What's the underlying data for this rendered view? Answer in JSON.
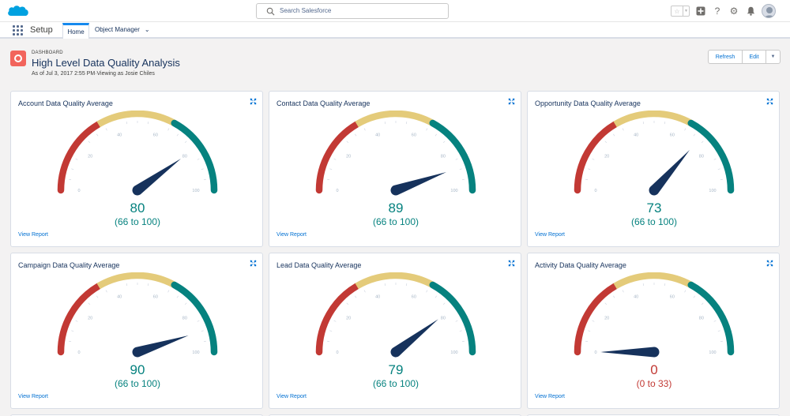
{
  "header": {
    "search_placeholder": "Search Salesforce",
    "favorites_star": "☆",
    "favorites_caret": "▼",
    "add_icon": "add-icon",
    "help_glyph": "?",
    "setup_glyph": "⚙",
    "bell_glyph": "🔔"
  },
  "nav": {
    "app_name": "Setup",
    "tabs": [
      {
        "label": "Home",
        "active": true
      },
      {
        "label": "Object Manager",
        "chevron": "⌄"
      }
    ]
  },
  "dashboard": {
    "eyebrow": "DASHBOARD",
    "title": "High Level Data Quality Analysis",
    "subtitle": "As of Jul 3, 2017 2:55 PM·Viewing as Josie Chiles",
    "buttons": {
      "refresh": "Refresh",
      "edit": "Edit"
    }
  },
  "colors": {
    "red": "#c23934",
    "yellow": "#e4cb7a",
    "teal": "#06827f",
    "needle": "#16325c",
    "link": "#0070d2"
  },
  "gauge_scale": {
    "min": 0,
    "max": 100,
    "ticks": [
      "0",
      "20",
      "40",
      "60",
      "80",
      "100"
    ],
    "bands": [
      0,
      33,
      66,
      100
    ]
  },
  "chart_data": [
    {
      "type": "gauge",
      "title": "Account Data Quality Average",
      "value": 80,
      "value_text": "80",
      "range_text": "(66 to 100)",
      "band": "teal",
      "link": "View Report"
    },
    {
      "type": "gauge",
      "title": "Contact Data Quality Average",
      "value": 89,
      "value_text": "89",
      "range_text": "(66 to 100)",
      "band": "teal",
      "link": "View Report"
    },
    {
      "type": "gauge",
      "title": "Opportunity Data Quality Average",
      "value": 73,
      "value_text": "73",
      "range_text": "(66 to 100)",
      "band": "teal",
      "link": "View Report"
    },
    {
      "type": "gauge",
      "title": "Campaign Data Quality Average",
      "value": 90,
      "value_text": "90",
      "range_text": "(66 to 100)",
      "band": "teal",
      "link": "View Report"
    },
    {
      "type": "gauge",
      "title": "Lead Data Quality Average",
      "value": 79,
      "value_text": "79",
      "range_text": "(66 to 100)",
      "band": "teal",
      "link": "View Report"
    },
    {
      "type": "gauge",
      "title": "Activity Data Quality Average",
      "value": 0,
      "value_text": "0",
      "range_text": "(0 to 33)",
      "band": "red",
      "link": "View Report"
    }
  ]
}
